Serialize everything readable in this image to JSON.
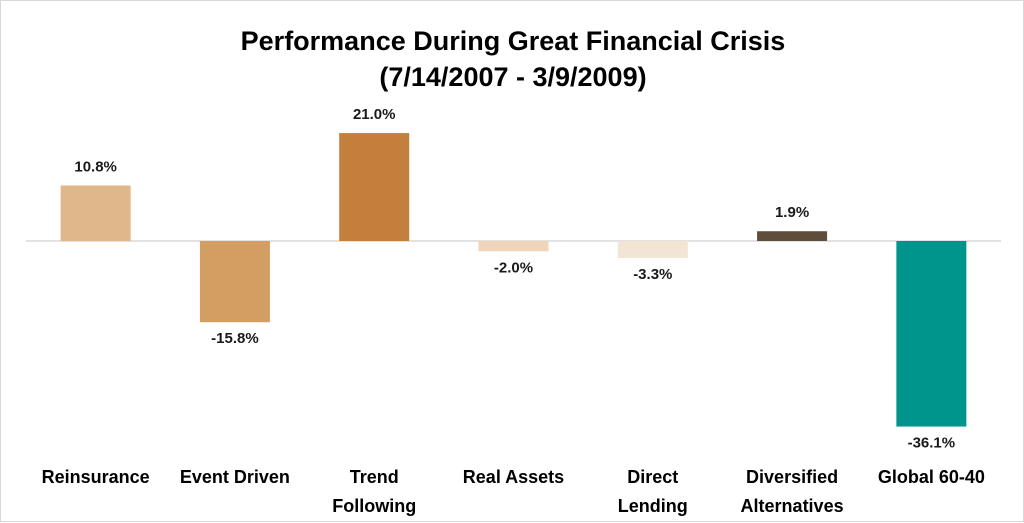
{
  "chart_data": {
    "type": "bar",
    "title": "Performance During Great Financial Crisis",
    "subtitle": "(7/14/2007 - 3/9/2009)",
    "categories": [
      "Reinsurance",
      "Event Driven",
      "Trend Following",
      "Real Assets",
      "Direct Lending",
      "Diversified Alternatives",
      "Global 60-40"
    ],
    "category_lines": [
      [
        "Reinsurance"
      ],
      [
        "Event Driven"
      ],
      [
        "Trend",
        "Following"
      ],
      [
        "Real Assets"
      ],
      [
        "Direct",
        "Lending"
      ],
      [
        "Diversified",
        "Alternatives"
      ],
      [
        "Global 60-40"
      ]
    ],
    "values": [
      10.8,
      -15.8,
      21.0,
      -2.0,
      -3.3,
      1.9,
      -36.1
    ],
    "value_labels": [
      "10.8%",
      "-15.8%",
      "21.0%",
      "-2.0%",
      "-3.3%",
      "1.9%",
      "-36.1%"
    ],
    "colors": [
      "#DFB78A",
      "#D39E62",
      "#C47F3D",
      "#EFD5B9",
      "#F2E5D6",
      "#5E4D3A",
      "#00958C"
    ],
    "zero_line_color": "#d9d9d9",
    "xlabel": "",
    "ylabel": "",
    "grid": false,
    "legend": "none"
  }
}
